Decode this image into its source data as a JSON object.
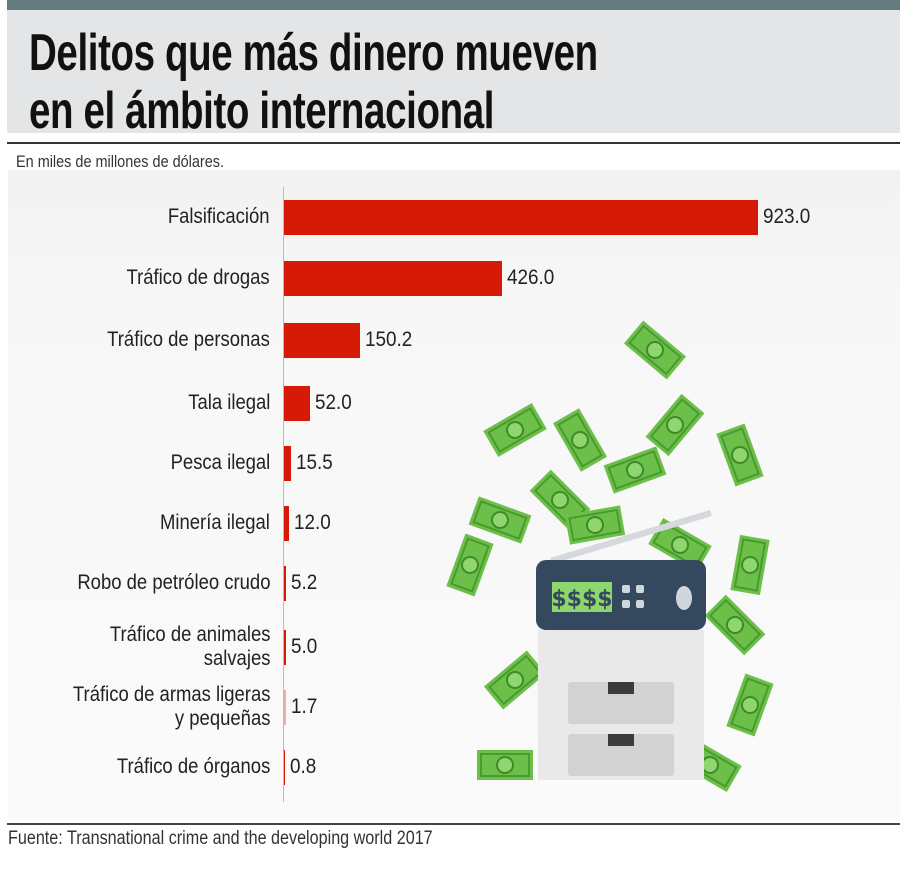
{
  "header": {
    "title_line1": "Delitos que más dinero mueven",
    "title_line2": "en el ámbito internacional"
  },
  "subtitle": "En miles de millones de dólares.",
  "source": "Fuente: Transnational crime and the developing world 2017",
  "colors": {
    "bar": "#d51b05",
    "header_bg": "#e4e5e6",
    "top_bar": "#657a7d"
  },
  "illustration": {
    "printer_display": "$$$$"
  },
  "chart_data": {
    "type": "bar",
    "orientation": "horizontal",
    "title": "Delitos que más dinero mueven en el ámbito internacional",
    "xlabel": "En miles de millones de dólares.",
    "ylabel": "",
    "categories": [
      "Falsificación",
      "Tráfico de drogas",
      "Tráfico de personas",
      "Tala ilegal",
      "Pesca ilegal",
      "Minería ilegal",
      "Robo de petróleo crudo",
      "Tráfico de animales salvajes",
      "Tráfico de armas ligeras y pequeñas",
      "Tráfico de órganos"
    ],
    "label_lines": [
      [
        "Falsificación"
      ],
      [
        "Tráfico de drogas"
      ],
      [
        "Tráfico de personas"
      ],
      [
        "Tala ilegal"
      ],
      [
        "Pesca ilegal"
      ],
      [
        "Minería ilegal"
      ],
      [
        "Robo de petróleo crudo"
      ],
      [
        "Tráfico de animales",
        "salvajes"
      ],
      [
        "Tráfico de armas ligeras",
        "y pequeñas"
      ],
      [
        "Tráfico de órganos"
      ]
    ],
    "values": [
      923.0,
      426.0,
      150.2,
      52.0,
      15.5,
      12.0,
      5.2,
      5.0,
      1.7,
      0.8
    ],
    "value_labels": [
      "923.0",
      "426.0",
      "150.2",
      "52.0",
      "15.5",
      "12.0",
      "5.2",
      "5.0",
      "1.7",
      "0.8"
    ],
    "xlim": [
      0,
      923
    ],
    "grid": false
  }
}
